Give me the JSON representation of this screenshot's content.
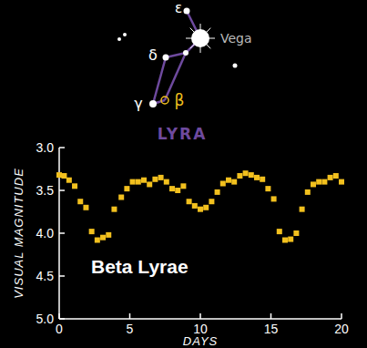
{
  "chart_data": {
    "type": "scatter",
    "title": "Beta Lyrae",
    "x_label": "DAYS",
    "y_label": "VISUAL MAGNITUDE",
    "annotations": [
      "Vega",
      "ε",
      "δ",
      "γ",
      "β",
      "LYRA"
    ],
    "x": [
      0,
      0.35,
      0.7,
      1.1,
      1.5,
      1.9,
      2.3,
      2.7,
      3.1,
      3.5,
      3.9,
      4.4,
      4.8,
      5.2,
      5.6,
      6.0,
      6.4,
      6.8,
      7.2,
      7.6,
      8.0,
      8.4,
      8.8,
      9.2,
      9.6,
      10.0,
      10.4,
      10.8,
      11.2,
      11.6,
      12.0,
      12.4,
      12.8,
      13.2,
      13.6,
      14.0,
      14.4,
      14.8,
      15.2,
      15.6,
      16.0,
      16.4,
      16.8,
      17.2,
      17.6,
      18.0,
      18.4,
      18.8,
      19.2,
      19.6,
      20.0
    ],
    "values": [
      3.32,
      3.33,
      3.38,
      3.45,
      3.63,
      3.7,
      3.98,
      4.08,
      4.05,
      4.02,
      3.72,
      3.58,
      3.48,
      3.4,
      3.4,
      3.38,
      3.43,
      3.37,
      3.35,
      3.4,
      3.48,
      3.5,
      3.45,
      3.63,
      3.68,
      3.72,
      3.7,
      3.63,
      3.52,
      3.42,
      3.38,
      3.4,
      3.33,
      3.3,
      3.32,
      3.35,
      3.37,
      3.48,
      3.6,
      3.98,
      4.08,
      4.07,
      4.0,
      3.72,
      3.52,
      3.43,
      3.4,
      3.4,
      3.35,
      3.33,
      3.4
    ],
    "color": "#f2c01e",
    "marker": "square",
    "xlim": [
      0,
      20
    ],
    "xticks": [
      0,
      5,
      10,
      15,
      20
    ],
    "ylim": [
      5,
      3
    ],
    "yticks": [
      {
        "value": 3,
        "label": "3.0"
      },
      3.5,
      {
        "value": 4,
        "label": "4.0"
      },
      4.5,
      {
        "value": 5,
        "label": "5.0"
      }
    ],
    "grid": false
  }
}
